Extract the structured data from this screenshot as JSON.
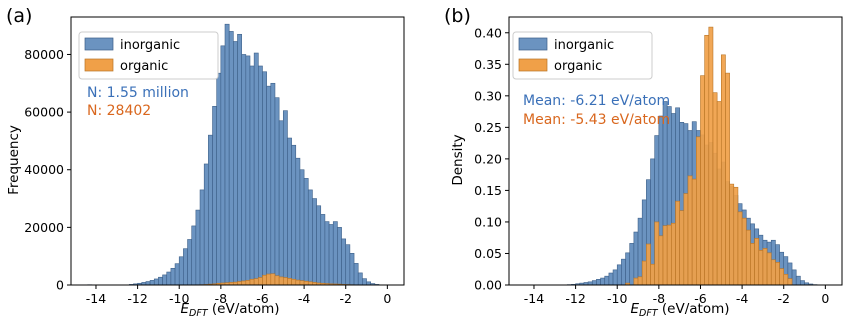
{
  "chart_data": [
    {
      "type": "bar",
      "panel_label": "(a)",
      "xlabel_main": "E",
      "xlabel_sub": "DFT",
      "xlabel_unit": " (eV/atom)",
      "ylabel": "Frequency",
      "xlim": [
        -15.2,
        0.8
      ],
      "ylim": [
        0,
        93000
      ],
      "xticks": [
        "-14",
        "-12",
        "-10",
        "-8",
        "-6",
        "-4",
        "-2",
        "0"
      ],
      "yticks": [
        "0",
        "20000",
        "40000",
        "60000",
        "80000"
      ],
      "legend": {
        "position": "top-left",
        "items": [
          "inorganic",
          "organic"
        ]
      },
      "annotations": [
        {
          "text": "N: 1.55 million",
          "color": "#3a70b8"
        },
        {
          "text": "N: 28402",
          "color": "#d9671e"
        }
      ],
      "series": [
        {
          "name": "inorganic",
          "color": "#6b93c0",
          "bins": [
            [
              -14.4,
              100
            ],
            [
              -12.4,
              200
            ],
            [
              -12.2,
              400
            ],
            [
              -12.0,
              600
            ],
            [
              -11.8,
              900
            ],
            [
              -11.6,
              1200
            ],
            [
              -11.4,
              1600
            ],
            [
              -11.2,
              2100
            ],
            [
              -11.0,
              2700
            ],
            [
              -10.8,
              3500
            ],
            [
              -10.6,
              4500
            ],
            [
              -10.4,
              5800
            ],
            [
              -10.2,
              7400
            ],
            [
              -10.0,
              9800
            ],
            [
              -9.8,
              12600
            ],
            [
              -9.6,
              15800
            ],
            [
              -9.4,
              20500
            ],
            [
              -9.2,
              26000
            ],
            [
              -9.0,
              33000
            ],
            [
              -8.8,
              42000
            ],
            [
              -8.6,
              52000
            ],
            [
              -8.4,
              62000
            ],
            [
              -8.2,
              73500
            ],
            [
              -8.0,
              83000
            ],
            [
              -7.8,
              90500
            ],
            [
              -7.6,
              88000
            ],
            [
              -7.4,
              84500
            ],
            [
              -7.2,
              87000
            ],
            [
              -7.0,
              80000
            ],
            [
              -6.8,
              79500
            ],
            [
              -6.6,
              76000
            ],
            [
              -6.4,
              80500
            ],
            [
              -6.2,
              76000
            ],
            [
              -6.0,
              74000
            ],
            [
              -5.8,
              69000
            ],
            [
              -5.6,
              70000
            ],
            [
              -5.4,
              65000
            ],
            [
              -5.2,
              57000
            ],
            [
              -5.0,
              60500
            ],
            [
              -4.8,
              51000
            ],
            [
              -4.6,
              48500
            ],
            [
              -4.4,
              44000
            ],
            [
              -4.2,
              40000
            ],
            [
              -4.0,
              37000
            ],
            [
              -3.8,
              33000
            ],
            [
              -3.6,
              30000
            ],
            [
              -3.4,
              27500
            ],
            [
              -3.2,
              24500
            ],
            [
              -3.0,
              22000
            ],
            [
              -2.8,
              21000
            ],
            [
              -2.6,
              22000
            ],
            [
              -2.4,
              20000
            ],
            [
              -2.2,
              16000
            ],
            [
              -2.0,
              14000
            ],
            [
              -1.8,
              11000
            ],
            [
              -1.6,
              7500
            ],
            [
              -1.4,
              4200
            ],
            [
              -1.2,
              2200
            ],
            [
              -1.0,
              1100
            ],
            [
              -0.8,
              500
            ],
            [
              -0.6,
              200
            ]
          ]
        },
        {
          "name": "organic",
          "color": "#f0a048",
          "bins": [
            [
              -9.6,
              40
            ],
            [
              -9.2,
              80
            ],
            [
              -9.0,
              120
            ],
            [
              -8.8,
              180
            ],
            [
              -8.6,
              300
            ],
            [
              -8.4,
              400
            ],
            [
              -8.2,
              600
            ],
            [
              -8.0,
              700
            ],
            [
              -7.8,
              800
            ],
            [
              -7.6,
              900
            ],
            [
              -7.4,
              1000
            ],
            [
              -7.2,
              1200
            ],
            [
              -7.0,
              1400
            ],
            [
              -6.8,
              1600
            ],
            [
              -6.6,
              2000
            ],
            [
              -6.4,
              2200
            ],
            [
              -6.2,
              2600
            ],
            [
              -6.0,
              3400
            ],
            [
              -5.8,
              3800
            ],
            [
              -5.6,
              3900
            ],
            [
              -5.4,
              3200
            ],
            [
              -5.2,
              2800
            ],
            [
              -5.0,
              2600
            ],
            [
              -4.8,
              2300
            ],
            [
              -4.6,
              2000
            ],
            [
              -4.4,
              1700
            ],
            [
              -4.2,
              1500
            ],
            [
              -4.0,
              1300
            ],
            [
              -3.8,
              1100
            ],
            [
              -3.6,
              900
            ],
            [
              -3.4,
              700
            ],
            [
              -3.2,
              600
            ],
            [
              -3.0,
              500
            ],
            [
              -2.8,
              400
            ],
            [
              -2.6,
              350
            ],
            [
              -2.4,
              300
            ],
            [
              -2.2,
              200
            ],
            [
              -2.0,
              150
            ],
            [
              -1.8,
              100
            ]
          ]
        }
      ]
    },
    {
      "type": "bar",
      "panel_label": "(b)",
      "xlabel_main": "E",
      "xlabel_sub": "DFT",
      "xlabel_unit": " (eV/atom)",
      "ylabel": "Density",
      "xlim": [
        -15.2,
        0.8
      ],
      "ylim": [
        0,
        0.425
      ],
      "xticks": [
        "-14",
        "-12",
        "-10",
        "-8",
        "-6",
        "-4",
        "-2",
        "0"
      ],
      "yticks": [
        "0.00",
        "0.05",
        "0.10",
        "0.15",
        "0.20",
        "0.25",
        "0.30",
        "0.35",
        "0.40"
      ],
      "legend": {
        "position": "top-left",
        "items": [
          "inorganic",
          "organic"
        ]
      },
      "annotations": [
        {
          "text": "Mean: -6.21 eV/atom",
          "color": "#3a70b8"
        },
        {
          "text": "Mean: -5.43 eV/atom",
          "color": "#d9671e"
        }
      ],
      "series": [
        {
          "name": "inorganic",
          "color": "#6b93c0",
          "bins": [
            [
              -14.4,
              0.0003
            ],
            [
              -12.4,
              0.0006
            ],
            [
              -12.2,
              0.001
            ],
            [
              -12.0,
              0.002
            ],
            [
              -11.8,
              0.003
            ],
            [
              -11.6,
              0.004
            ],
            [
              -11.4,
              0.005
            ],
            [
              -11.2,
              0.007
            ],
            [
              -11.0,
              0.009
            ],
            [
              -10.8,
              0.011
            ],
            [
              -10.6,
              0.014
            ],
            [
              -10.4,
              0.019
            ],
            [
              -10.2,
              0.024
            ],
            [
              -10.0,
              0.032
            ],
            [
              -9.8,
              0.041
            ],
            [
              -9.6,
              0.051
            ],
            [
              -9.4,
              0.066
            ],
            [
              -9.2,
              0.084
            ],
            [
              -9.0,
              0.106
            ],
            [
              -8.8,
              0.135
            ],
            [
              -8.6,
              0.167
            ],
            [
              -8.4,
              0.2
            ],
            [
              -8.2,
              0.237
            ],
            [
              -8.0,
              0.268
            ],
            [
              -7.8,
              0.291
            ],
            [
              -7.6,
              0.283
            ],
            [
              -7.4,
              0.272
            ],
            [
              -7.2,
              0.281
            ],
            [
              -7.0,
              0.258
            ],
            [
              -6.8,
              0.256
            ],
            [
              -6.6,
              0.245
            ],
            [
              -6.4,
              0.259
            ],
            [
              -6.2,
              0.245
            ],
            [
              -6.0,
              0.238
            ],
            [
              -5.8,
              0.222
            ],
            [
              -5.6,
              0.226
            ],
            [
              -5.4,
              0.209
            ],
            [
              -5.2,
              0.184
            ],
            [
              -5.0,
              0.195
            ],
            [
              -4.8,
              0.164
            ],
            [
              -4.6,
              0.156
            ],
            [
              -4.4,
              0.142
            ],
            [
              -4.2,
              0.129
            ],
            [
              -4.0,
              0.119
            ],
            [
              -3.8,
              0.106
            ],
            [
              -3.6,
              0.097
            ],
            [
              -3.4,
              0.089
            ],
            [
              -3.2,
              0.079
            ],
            [
              -3.0,
              0.071
            ],
            [
              -2.8,
              0.068
            ],
            [
              -2.6,
              0.071
            ],
            [
              -2.4,
              0.064
            ],
            [
              -2.2,
              0.052
            ],
            [
              -2.0,
              0.045
            ],
            [
              -1.8,
              0.035
            ],
            [
              -1.6,
              0.024
            ],
            [
              -1.4,
              0.014
            ],
            [
              -1.2,
              0.007
            ],
            [
              -1.0,
              0.0035
            ],
            [
              -0.8,
              0.0016
            ],
            [
              -0.6,
              0.0006
            ]
          ]
        },
        {
          "name": "organic",
          "color": "#f0a048",
          "bins": [
            [
              -9.6,
              0.003
            ],
            [
              -9.2,
              0.011
            ],
            [
              -9.0,
              0.013
            ],
            [
              -8.8,
              0.038
            ],
            [
              -8.6,
              0.065
            ],
            [
              -8.4,
              0.033
            ],
            [
              -8.2,
              0.1
            ],
            [
              -8.0,
              0.078
            ],
            [
              -7.8,
              0.094
            ],
            [
              -7.6,
              0.095
            ],
            [
              -7.4,
              0.098
            ],
            [
              -7.2,
              0.133
            ],
            [
              -7.0,
              0.118
            ],
            [
              -6.8,
              0.145
            ],
            [
              -6.6,
              0.173
            ],
            [
              -6.4,
              0.168
            ],
            [
              -6.2,
              0.235
            ],
            [
              -6.0,
              0.332
            ],
            [
              -5.8,
              0.396
            ],
            [
              -5.6,
              0.409
            ],
            [
              -5.4,
              0.305
            ],
            [
              -5.2,
              0.291
            ],
            [
              -5.0,
              0.365
            ],
            [
              -4.8,
              0.336
            ],
            [
              -4.6,
              0.16
            ],
            [
              -4.4,
              0.155
            ],
            [
              -4.2,
              0.116
            ],
            [
              -4.0,
              0.106
            ],
            [
              -3.8,
              0.087
            ],
            [
              -3.6,
              0.066
            ],
            [
              -3.4,
              0.074
            ],
            [
              -3.2,
              0.055
            ],
            [
              -3.0,
              0.058
            ],
            [
              -2.8,
              0.051
            ],
            [
              -2.6,
              0.04
            ],
            [
              -2.4,
              0.036
            ],
            [
              -2.2,
              0.026
            ],
            [
              -2.0,
              0.017
            ],
            [
              -1.8,
              0.01
            ]
          ]
        }
      ]
    }
  ]
}
